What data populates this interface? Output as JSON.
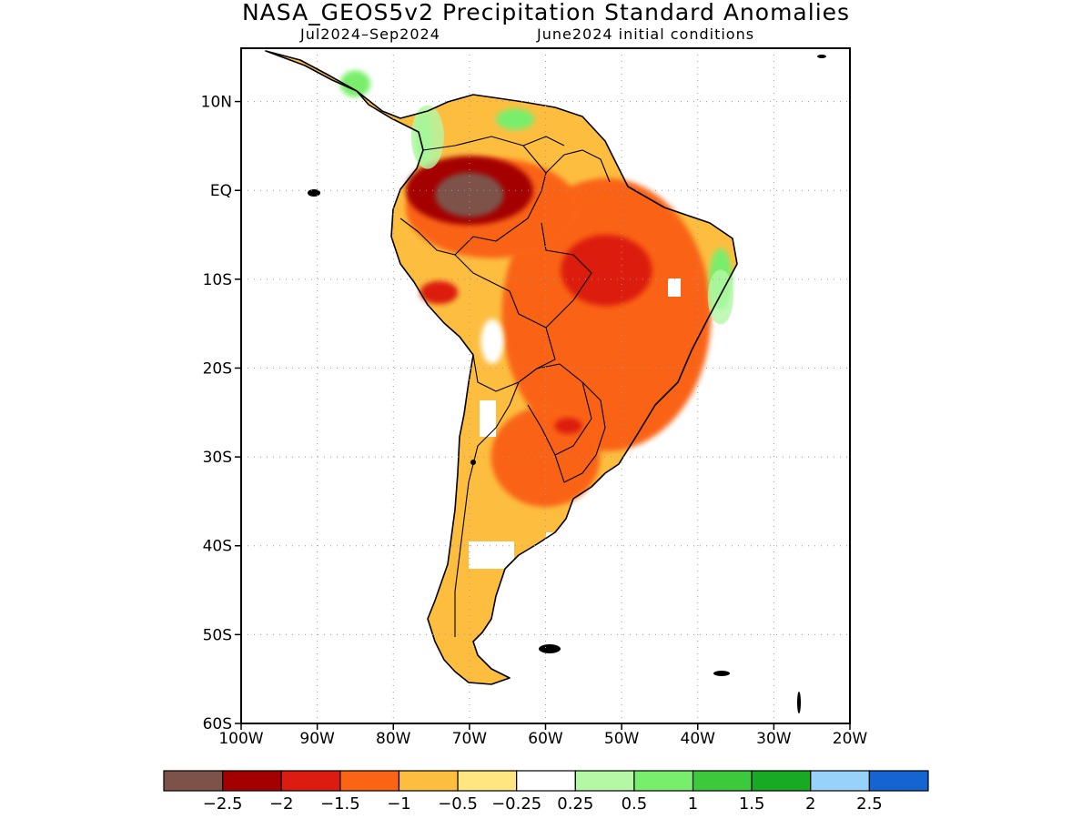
{
  "header": {
    "title": "NASA_GEOS5v2 Precipitation Standard Anomalies",
    "period": "Jul2024–Sep2024",
    "init": "June2024 initial conditions"
  },
  "map": {
    "lon_ticks": [
      {
        "value": -100,
        "label": "100W"
      },
      {
        "value": -90,
        "label": "90W"
      },
      {
        "value": -80,
        "label": "80W"
      },
      {
        "value": -70,
        "label": "70W"
      },
      {
        "value": -60,
        "label": "60W"
      },
      {
        "value": -50,
        "label": "50W"
      },
      {
        "value": -40,
        "label": "40W"
      },
      {
        "value": -30,
        "label": "30W"
      },
      {
        "value": -20,
        "label": "20W"
      }
    ],
    "lat_ticks": [
      {
        "value": 10,
        "label": "10N"
      },
      {
        "value": 0,
        "label": "EQ"
      },
      {
        "value": -10,
        "label": "10S"
      },
      {
        "value": -20,
        "label": "20S"
      },
      {
        "value": -30,
        "label": "30S"
      },
      {
        "value": -40,
        "label": "40S"
      },
      {
        "value": -50,
        "label": "50S"
      },
      {
        "value": -60,
        "label": "60S"
      }
    ],
    "lon_range": [
      -100,
      -20
    ],
    "lat_range": [
      -60,
      16
    ],
    "grid": "dotted",
    "regions": [
      {
        "name": "northwest-amazon-core",
        "level": -3,
        "lon": -70,
        "lat": -0.5,
        "rx": 4.5,
        "ry": 2.5
      },
      {
        "name": "central-brazil-core",
        "level": -2,
        "lon": -52,
        "lat": -9,
        "rx": 6,
        "ry": 4
      },
      {
        "name": "andes-peru-core",
        "level": -2,
        "lon": -74,
        "lat": -11.5,
        "rx": 2.5,
        "ry": 1.3
      },
      {
        "name": "pantanal-core",
        "level": -2,
        "lon": -57,
        "lat": -26.5,
        "rx": 1.8,
        "ry": 0.9
      },
      {
        "name": "colombia-pacific-wet",
        "level": 1,
        "lon": -76,
        "lat": 6,
        "rx": 1.2,
        "ry": 3
      },
      {
        "name": "venezuela-wet",
        "level": 1,
        "lon": -64,
        "lat": 8,
        "rx": 2.5,
        "ry": 1.2
      },
      {
        "name": "northeast-brazil-wet",
        "level": 1,
        "lon": -37,
        "lat": -10,
        "rx": 1.5,
        "ry": 3.5
      },
      {
        "name": "bolivia-wet",
        "level": 0,
        "lon": -67,
        "lat": -17,
        "rx": 1.5,
        "ry": 2.5
      },
      {
        "name": "central-america-wet",
        "level": 1,
        "lon": -85,
        "lat": 12,
        "rx": 2,
        "ry": 1.5
      }
    ]
  },
  "colorbar": {
    "colors": [
      "#7d5349",
      "#a50000",
      "#dc1c10",
      "#fa6414",
      "#fdbe40",
      "#ffe680",
      "#ffffff",
      "#b4f8a6",
      "#79ee6c",
      "#3cca3c",
      "#18aa22",
      "#96d2fa",
      "#1464d2"
    ],
    "labels": [
      "-2.5",
      "-2",
      "-1.5",
      "-1",
      "-0.5",
      "-0.25",
      "0.25",
      "0.5",
      "1",
      "1.5",
      "2",
      "2.5"
    ]
  }
}
